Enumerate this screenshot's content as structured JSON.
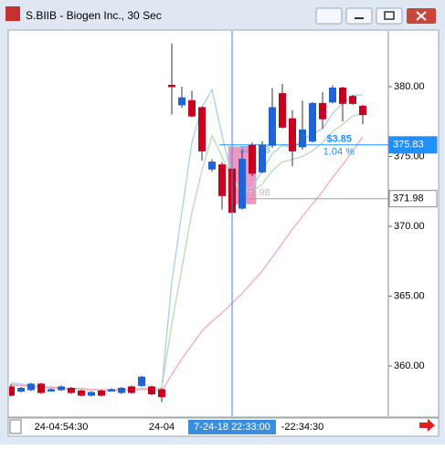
{
  "window": {
    "title": "S.BIIB - Biogen Inc., 30 Sec"
  },
  "chart_data": {
    "type": "candlestick",
    "categories": [
      null,
      null,
      null,
      null,
      null,
      "24-04:54:30",
      null,
      null,
      null,
      null,
      null,
      null,
      null,
      null,
      null,
      "24-04",
      null,
      null,
      null,
      null,
      null,
      null,
      null,
      null,
      null,
      null,
      null,
      null,
      null,
      "-22:34:30",
      null,
      null,
      null,
      null,
      null,
      null
    ],
    "open": [
      358.5,
      358.2,
      358.3,
      358.7,
      358.3,
      358.3,
      358.4,
      358.2,
      357.9,
      358.2,
      358.3,
      358.1,
      358.5,
      358.6,
      358.5,
      358.3,
      380.1,
      378.7,
      379.0,
      378.5,
      374.1,
      374.4,
      374.1,
      371.3,
      375.8,
      373.9,
      375.8,
      379.5,
      377.7,
      375.7,
      376.1,
      378.8,
      378.9,
      379.9,
      379.3,
      378.6
    ],
    "high": [
      358.7,
      358.5,
      358.8,
      358.8,
      358.4,
      358.6,
      358.5,
      358.3,
      358.2,
      358.3,
      358.4,
      358.5,
      358.6,
      359.3,
      358.6,
      358.4,
      383.1,
      380.0,
      379.7,
      378.6,
      374.8,
      374.6,
      374.6,
      375.5,
      376.0,
      376.1,
      379.9,
      380.2,
      378.3,
      379.0,
      378.9,
      379.6,
      380.1,
      380.0,
      379.4,
      378.7
    ],
    "low": [
      357.8,
      358.1,
      358.2,
      358.0,
      358.2,
      358.2,
      358.0,
      357.8,
      357.8,
      357.8,
      358.2,
      358.0,
      358.0,
      358.5,
      357.9,
      357.4,
      378.0,
      378.5,
      377.8,
      374.7,
      373.9,
      371.2,
      370.9,
      371.2,
      373.6,
      373.8,
      375.6,
      377.0,
      374.3,
      375.5,
      376.0,
      377.0,
      378.8,
      377.5,
      378.7,
      377.3
    ],
    "close": [
      357.9,
      358.4,
      358.7,
      358.1,
      358.3,
      358.5,
      358.1,
      357.9,
      358.1,
      357.9,
      358.3,
      358.4,
      358.1,
      359.2,
      358.0,
      357.8,
      380.0,
      379.2,
      377.9,
      375.4,
      374.6,
      372.2,
      371.0,
      374.8,
      373.8,
      375.8,
      378.5,
      377.1,
      375.4,
      376.9,
      378.8,
      377.7,
      379.9,
      378.8,
      378.8,
      378.0
    ],
    "up_color": "#1f63d6",
    "down_color": "#c8001e",
    "lines": [
      {
        "color": "#a8cdee",
        "values": [
          358.8,
          358.7,
          358.6,
          358.5,
          358.4,
          358.4,
          358.3,
          358.3,
          358.3,
          358.2,
          358.2,
          358.3,
          358.3,
          358.4,
          358.4,
          358.4,
          366.0,
          371.0,
          376.0,
          378.5,
          379.8,
          376.5,
          373.5,
          372.6,
          372.8,
          374.0,
          375.2,
          375.8,
          375.6,
          376.2,
          376.6,
          377.0,
          378.1,
          378.8,
          379.4,
          379.4
        ]
      },
      {
        "color": "#b8dcb0",
        "values": [
          358.7,
          358.6,
          358.6,
          358.5,
          358.5,
          358.4,
          358.4,
          358.3,
          358.3,
          358.3,
          358.3,
          358.3,
          358.3,
          358.4,
          358.4,
          358.4,
          363.0,
          367.0,
          371.0,
          374.0,
          376.5,
          375.0,
          373.3,
          372.5,
          372.5,
          373.0,
          374.0,
          374.6,
          374.8,
          375.0,
          375.4,
          376.0,
          376.8,
          377.3,
          377.9,
          378.1
        ]
      },
      {
        "color": "#f4a6c4",
        "values": [
          358.6,
          358.6,
          358.5,
          358.5,
          358.5,
          358.4,
          358.4,
          358.4,
          358.3,
          358.3,
          358.3,
          358.3,
          358.3,
          358.3,
          358.3,
          358.2,
          359.4,
          360.5,
          361.5,
          362.5,
          363.2,
          363.8,
          364.5,
          365.2,
          366.0,
          366.8,
          367.8,
          368.8,
          369.8,
          370.7,
          371.6,
          372.5,
          373.5,
          374.4,
          375.4,
          376.4
        ]
      }
    ],
    "ylim": [
      356.47,
      383.92
    ],
    "yticks": [
      {
        "value": 360,
        "label": "360.00"
      },
      {
        "value": 365,
        "label": "365.00"
      },
      {
        "value": 370,
        "label": "370.00"
      },
      {
        "value": 375,
        "label": "375.00"
      },
      {
        "value": 380,
        "label": "380.00"
      }
    ],
    "hlines": [
      {
        "value": 375.83,
        "label": "375.83",
        "color": "#1e90ff"
      },
      {
        "value": 371.98,
        "label": "371.98",
        "color": "#a0a0a0"
      }
    ],
    "change": {
      "amount": "$3.85",
      "percent": "1.04 %"
    },
    "crosshair": {
      "index": 22,
      "label": "7-24-18 22:33:00"
    },
    "highlight": {
      "from": 22,
      "to": 24,
      "low": 371.6,
      "high": 375.7,
      "color": "#e8509a"
    }
  }
}
